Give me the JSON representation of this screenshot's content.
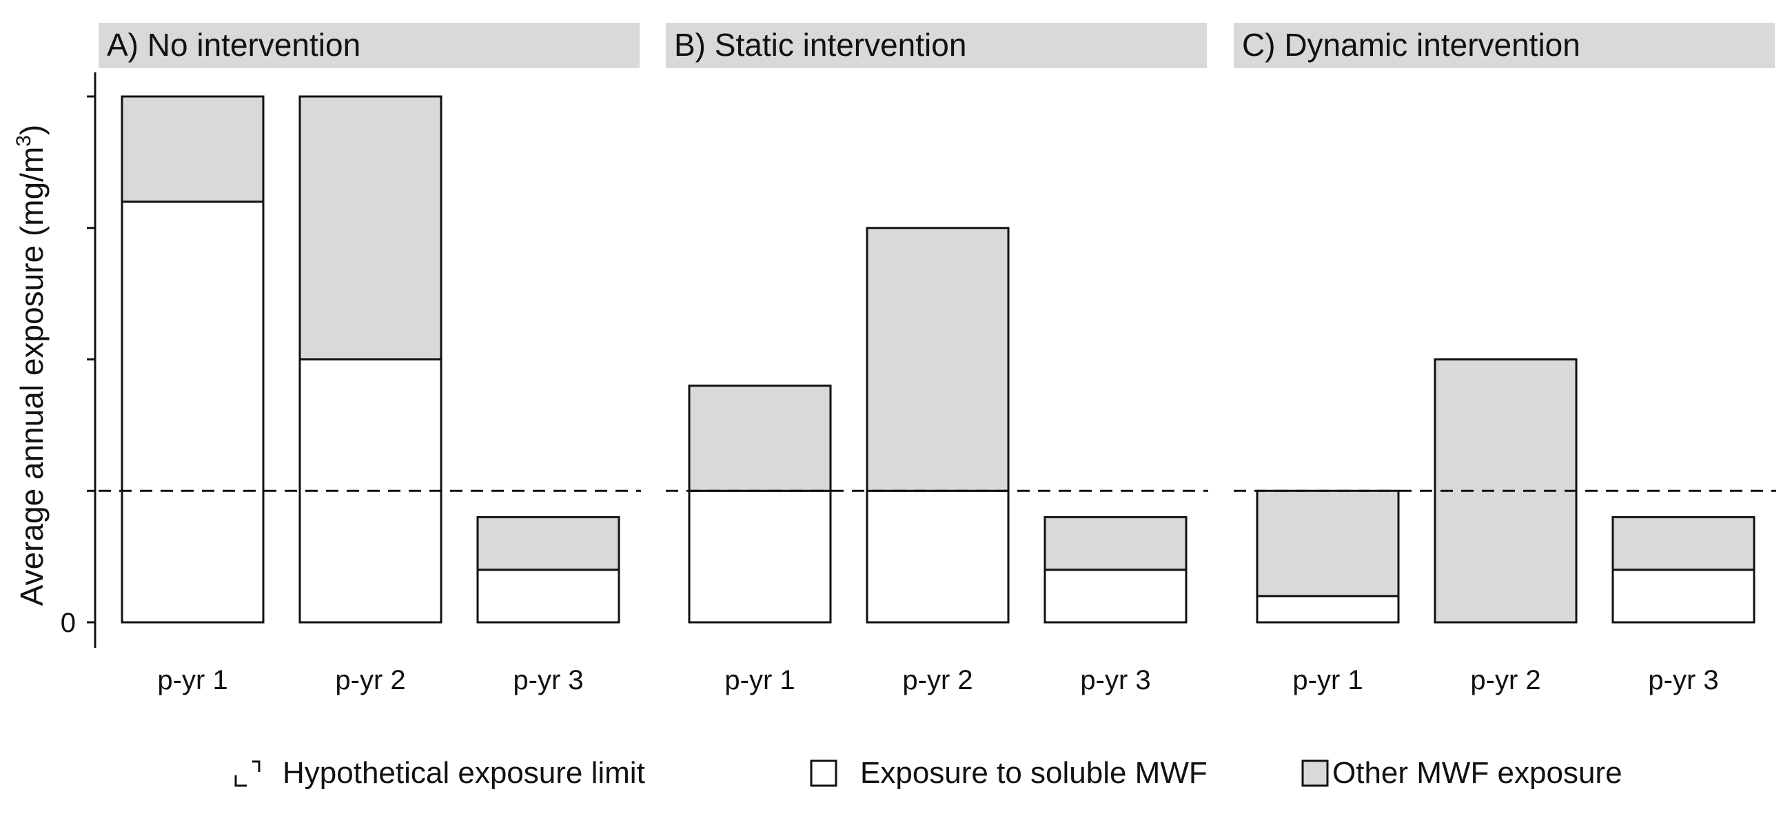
{
  "chart_data": {
    "type": "bar",
    "stacked": true,
    "ylabel": "Average annual exposure (mg/m",
    "ylabel_sup": "3",
    "ylabel_close": ")",
    "y_tick_labels": [
      {
        "value": 0,
        "label": "0"
      }
    ],
    "y_ticks": [
      0,
      1,
      2,
      3,
      4
    ],
    "ylim": [
      0,
      4
    ],
    "reference_line": {
      "value": 1,
      "style": "dashed",
      "label": "Hypothetical exposure limit"
    },
    "series": [
      {
        "key": "soluble",
        "name": "Exposure to soluble MWF",
        "color": "#ffffff"
      },
      {
        "key": "other",
        "name": "Other MWF exposure",
        "color": "#d9d9d9"
      }
    ],
    "categories": [
      "p-yr 1",
      "p-yr 2",
      "p-yr 3"
    ],
    "panels": [
      {
        "title": "A) No intervention",
        "bars": [
          {
            "category": "p-yr 1",
            "soluble": 3.2,
            "other": 0.8
          },
          {
            "category": "p-yr 2",
            "soluble": 2.0,
            "other": 2.0
          },
          {
            "category": "p-yr 3",
            "soluble": 0.4,
            "other": 0.4
          }
        ]
      },
      {
        "title": "B) Static intervention",
        "bars": [
          {
            "category": "p-yr 1",
            "soluble": 1.0,
            "other": 0.8
          },
          {
            "category": "p-yr 2",
            "soluble": 1.0,
            "other": 2.0
          },
          {
            "category": "p-yr 3",
            "soluble": 0.4,
            "other": 0.4
          }
        ]
      },
      {
        "title": "C) Dynamic intervention",
        "bars": [
          {
            "category": "p-yr 1",
            "soluble": 0.2,
            "other": 0.8
          },
          {
            "category": "p-yr 2",
            "soluble": 0.0,
            "other": 2.0
          },
          {
            "category": "p-yr 3",
            "soluble": 0.4,
            "other": 0.4
          }
        ]
      }
    ],
    "legend": {
      "position": "bottom",
      "items": [
        {
          "label": "Hypothetical exposure limit",
          "symbol": "dashed-line"
        },
        {
          "label": "Exposure to soluble MWF",
          "symbol": "white-box"
        },
        {
          "label": "Other MWF exposure",
          "symbol": "grey-box"
        }
      ]
    }
  }
}
